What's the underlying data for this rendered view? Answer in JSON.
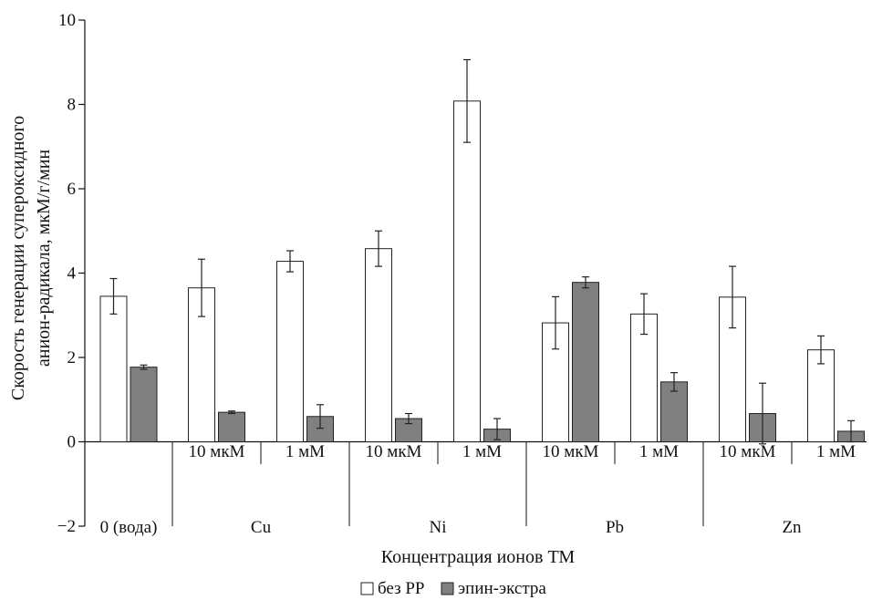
{
  "chart_data": {
    "type": "bar",
    "ylabel_line1": "Скорость генерации супероксидного",
    "ylabel_line2": "анион-радикала, мкМ/г/мин",
    "xlabel": "Концентрация ионов ТМ",
    "ylim": [
      -2,
      10
    ],
    "yticks": [
      -2,
      0,
      2,
      4,
      6,
      8,
      10
    ],
    "grid": false,
    "legend_position": "bottom",
    "groups": [
      {
        "name": "0 (вода)",
        "subgroups": [
          ""
        ]
      },
      {
        "name": "Cu",
        "subgroups": [
          "10 мкМ",
          "1 мМ"
        ]
      },
      {
        "name": "Ni",
        "subgroups": [
          "10 мкМ",
          "1 мМ"
        ]
      },
      {
        "name": "Pb",
        "subgroups": [
          "10 мкМ",
          "1 мМ"
        ]
      },
      {
        "name": "Zn",
        "subgroups": [
          "10 мкМ",
          "1 мМ"
        ]
      }
    ],
    "series": [
      {
        "name": "без РР",
        "color": "#ffffff",
        "values": [
          3.45,
          3.65,
          4.28,
          4.58,
          8.08,
          2.82,
          3.03,
          3.43,
          2.18
        ],
        "errors": [
          0.42,
          0.68,
          0.25,
          0.42,
          0.98,
          0.62,
          0.48,
          0.73,
          0.33
        ]
      },
      {
        "name": "эпин-экстра",
        "color": "#808080",
        "values": [
          1.77,
          0.7,
          0.6,
          0.55,
          0.3,
          3.78,
          1.42,
          0.67,
          0.25
        ],
        "errors": [
          0.05,
          0.03,
          0.28,
          0.12,
          0.25,
          0.13,
          0.22,
          0.72,
          0.25
        ]
      }
    ]
  }
}
